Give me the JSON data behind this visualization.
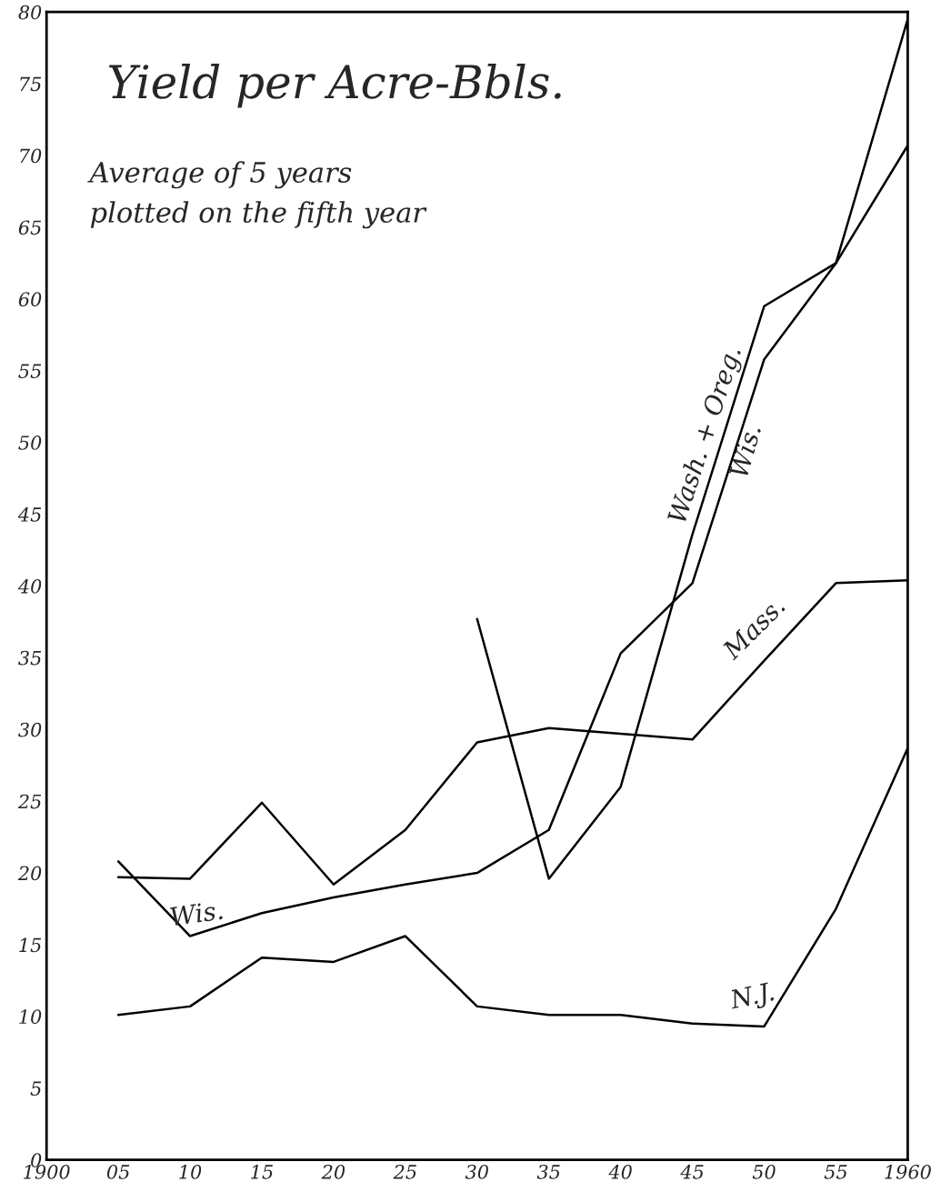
{
  "chart_data": {
    "type": "line",
    "title": "Yield per Acre-Bbls.",
    "subtitle": "Average of 5 years\nplotted on the fifth year",
    "x": [
      1905,
      1910,
      1915,
      1920,
      1925,
      1930,
      1935,
      1940,
      1945,
      1950,
      1955,
      1960
    ],
    "series": [
      {
        "name": "Mass.",
        "color": "#000000",
        "values": [
          19.7,
          19.6,
          24.9,
          19.2,
          23.0,
          29.1,
          30.1,
          29.7,
          29.3,
          34.8,
          40.2,
          40.4
        ]
      },
      {
        "name": "Wis.",
        "color": "#000000",
        "values": [
          20.8,
          15.6,
          17.2,
          18.3,
          19.2,
          20.0,
          23.0,
          35.3,
          40.2,
          55.8,
          62.5,
          70.7
        ]
      },
      {
        "name": "Wash. + Oreg.",
        "color": "#000000",
        "values": [
          null,
          null,
          null,
          null,
          null,
          37.7,
          19.6,
          26.0,
          43.6,
          59.5,
          62.5,
          79.5
        ]
      },
      {
        "name": "N.J.",
        "color": "#000000",
        "values": [
          10.1,
          10.7,
          14.1,
          13.8,
          15.6,
          10.7,
          10.1,
          10.1,
          9.5,
          9.3,
          17.5,
          28.7
        ]
      }
    ],
    "annotations": [
      {
        "text": "Wis.",
        "x": 1948,
        "y": 49.6
      }
    ],
    "xlim": [
      1900,
      1960
    ],
    "xticks": [
      {
        "value": 1900,
        "label": "1900"
      },
      {
        "value": 1905,
        "label": "05"
      },
      {
        "value": 1910,
        "label": "10"
      },
      {
        "value": 1915,
        "label": "15"
      },
      {
        "value": 1920,
        "label": "20"
      },
      {
        "value": 1925,
        "label": "25"
      },
      {
        "value": 1930,
        "label": "30"
      },
      {
        "value": 1935,
        "label": "35"
      },
      {
        "value": 1940,
        "label": "40"
      },
      {
        "value": 1945,
        "label": "45"
      },
      {
        "value": 1950,
        "label": "50"
      },
      {
        "value": 1955,
        "label": "55"
      },
      {
        "value": 1960,
        "label": "1960"
      }
    ],
    "ylim": [
      0,
      80
    ],
    "yticks": [
      0,
      5,
      10,
      15,
      20,
      25,
      30,
      35,
      40,
      45,
      50,
      55,
      60,
      65,
      70,
      75,
      80
    ],
    "grid": false,
    "legend": false,
    "marker": "none",
    "line_style": "solid"
  }
}
